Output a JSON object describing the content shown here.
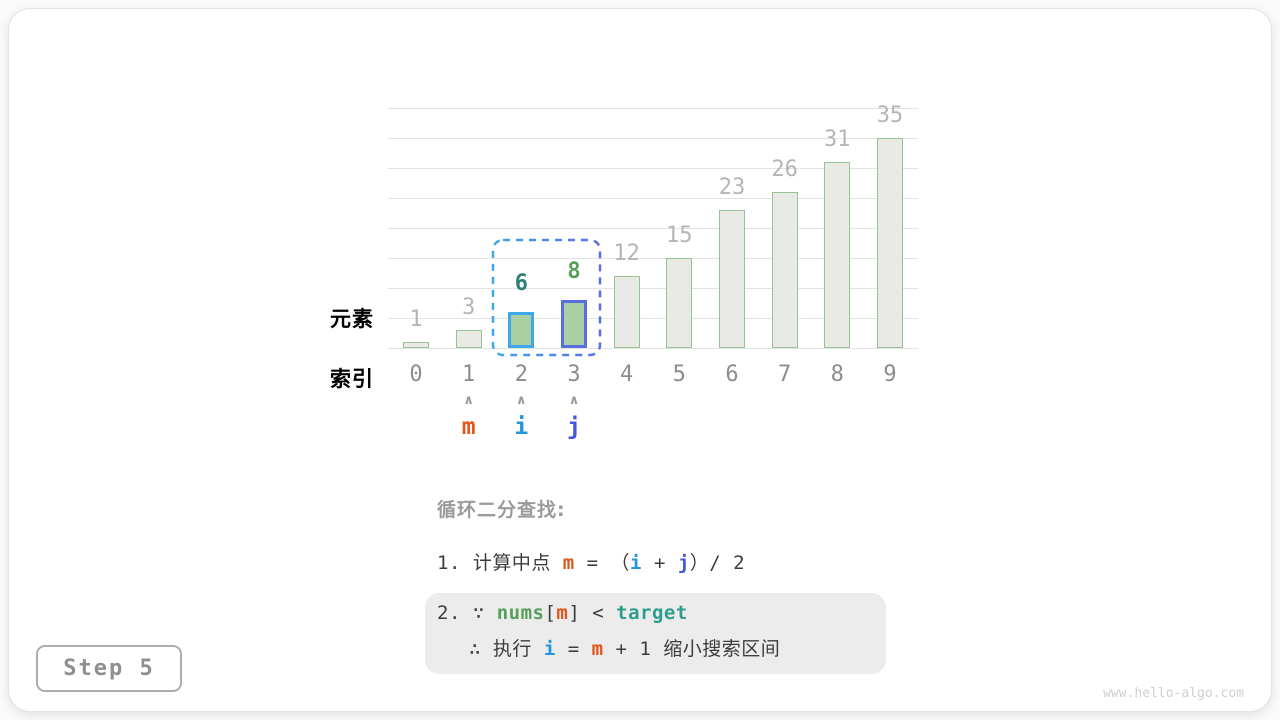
{
  "colors": {
    "orange": "#e2541a",
    "blue": "#2196dd",
    "indigo": "#4456dd",
    "green": "#56a05a",
    "teal": "#2e9d8e",
    "teal_dark": "#2e8076",
    "dark": "#3d3d3d",
    "value_label_gray": "#b5b5b5",
    "index_gray": "#8d8d8d",
    "bar_fill": "#e9e9e5",
    "bar_border": "#97c295",
    "bar_fill_active": "#a9cfa2",
    "bar2_border": "#3ea8ea",
    "bar3_border": "#5b6ee1",
    "gridline": "#e3e3e3"
  },
  "chart_data": {
    "type": "bar",
    "title": "",
    "categories": [
      "0",
      "1",
      "2",
      "3",
      "4",
      "5",
      "6",
      "7",
      "8",
      "9"
    ],
    "values": [
      1,
      3,
      6,
      8,
      12,
      15,
      23,
      26,
      31,
      35
    ],
    "ylim": [
      0,
      40
    ],
    "gridline_step": 5,
    "grid": true,
    "row_labels": {
      "element": "元素",
      "index": "索引"
    },
    "highlighted_bars": [
      {
        "index": 2,
        "value": 6,
        "border": "bar2_border",
        "label_color": "teal_dark"
      },
      {
        "index": 3,
        "value": 8,
        "border": "bar3_border",
        "label_color": "green"
      }
    ],
    "search_range_indices": [
      2,
      3
    ]
  },
  "pointers": [
    {
      "label": "m",
      "index": 1,
      "color": "orange"
    },
    {
      "label": "i",
      "index": 2,
      "color": "blue"
    },
    {
      "label": "j",
      "index": 3,
      "color": "indigo"
    }
  ],
  "icons": {
    "pointer_arrow": "∧"
  },
  "description": {
    "title": "循环二分查找:",
    "line1": [
      {
        "t": "1. 计算中点 "
      },
      {
        "t": "m",
        "c": "orange",
        "b": true
      },
      {
        "t": " = （"
      },
      {
        "t": "i",
        "c": "blue",
        "b": true
      },
      {
        "t": " + "
      },
      {
        "t": "j",
        "c": "indigo",
        "b": true
      },
      {
        "t": "）/ 2"
      }
    ],
    "box_line1": [
      {
        "t": "2. ∵ "
      },
      {
        "t": "nums",
        "c": "green",
        "b": true
      },
      {
        "t": "["
      },
      {
        "t": "m",
        "c": "orange",
        "b": true
      },
      {
        "t": "] < "
      },
      {
        "t": "target",
        "c": "teal",
        "b": true
      }
    ],
    "box_line2": [
      {
        "t": "∴ 执行 "
      },
      {
        "t": "i",
        "c": "blue",
        "b": true
      },
      {
        "t": " = "
      },
      {
        "t": "m",
        "c": "orange",
        "b": true
      },
      {
        "t": " + 1 缩小搜索区间"
      }
    ]
  },
  "step_badge": "Step 5",
  "watermark": "www.hello-algo.com"
}
